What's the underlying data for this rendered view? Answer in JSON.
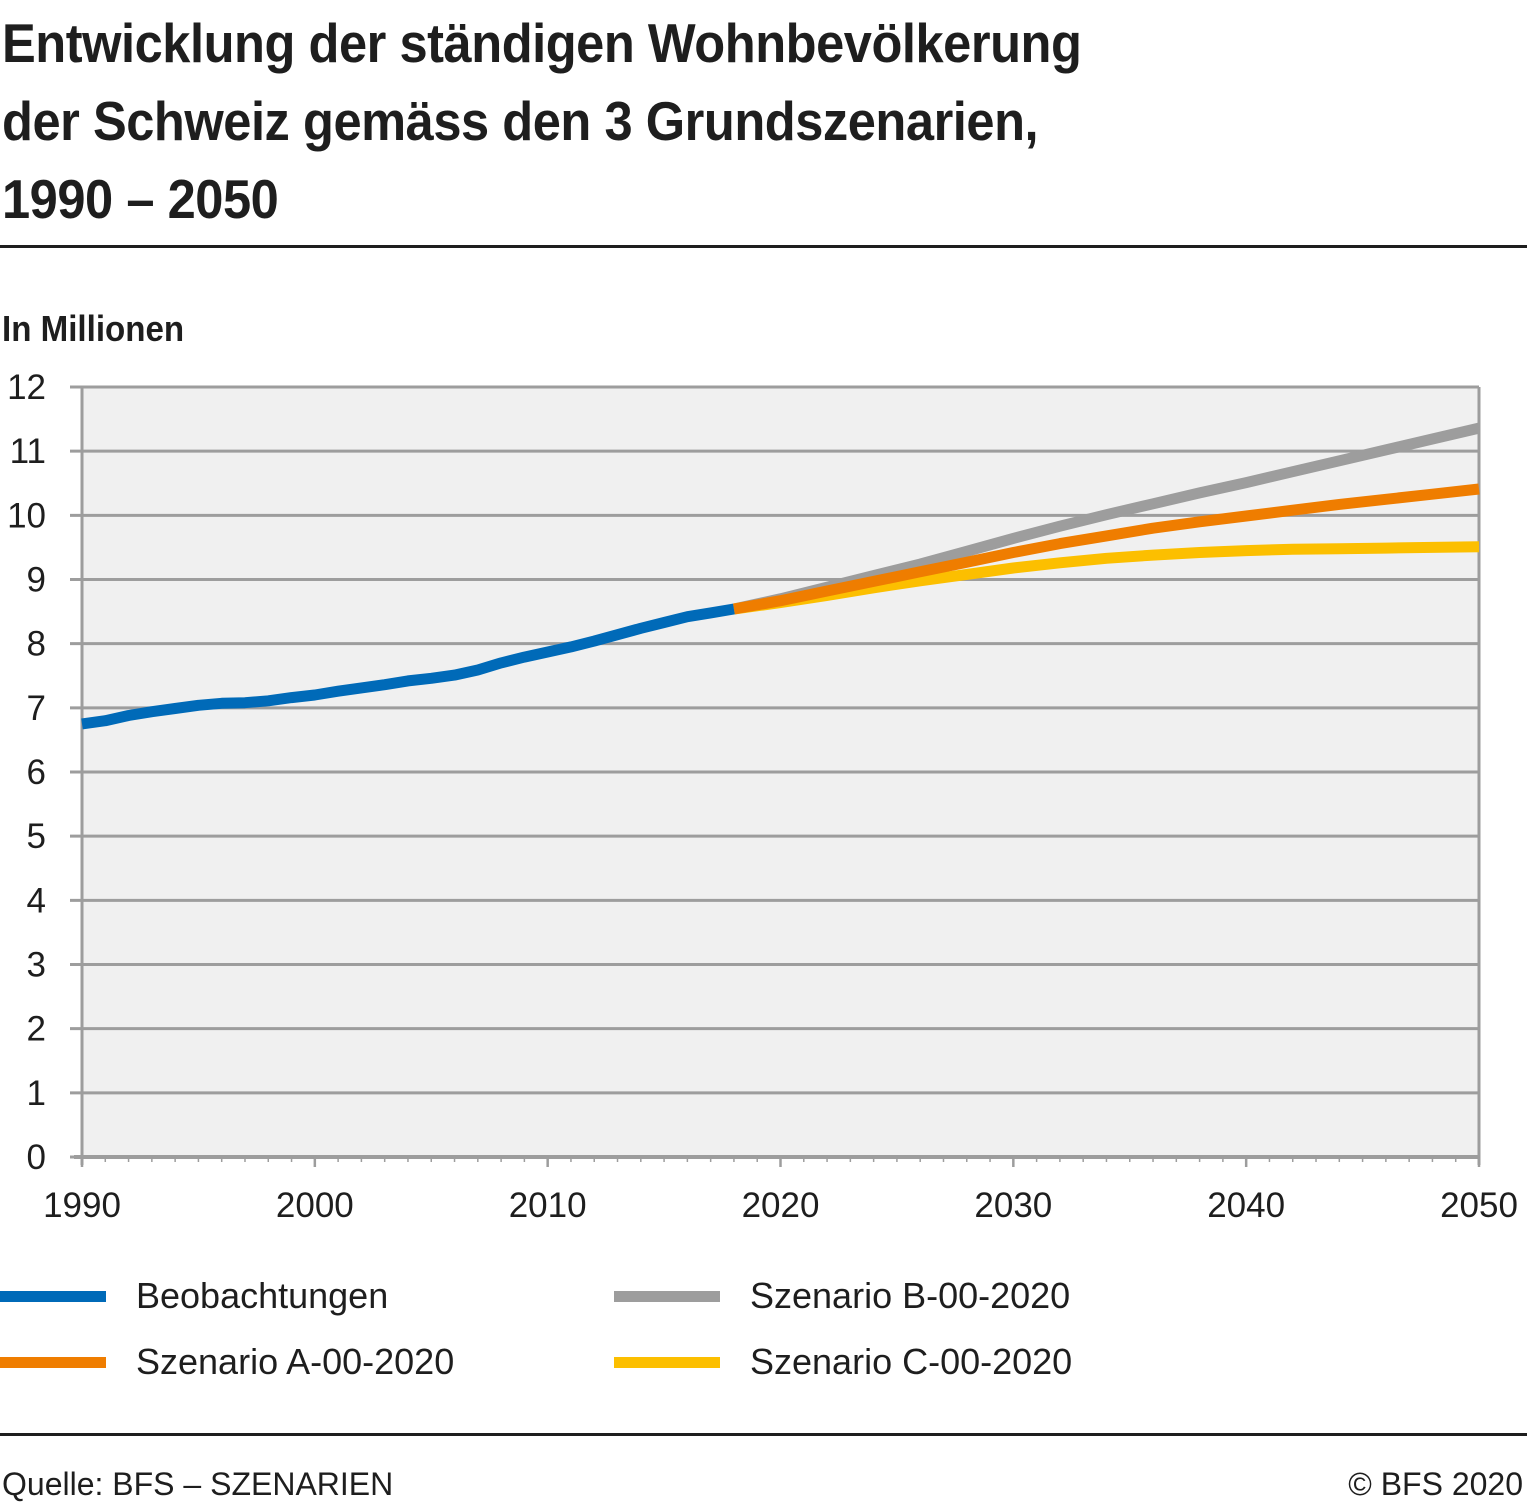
{
  "header": {
    "title_lines": [
      "Entwicklung der ständigen Wohnbevölkerung",
      "der Schweiz gemäss den 3 Grundszenarien,",
      "1990 – 2050"
    ],
    "unit_label": "In Millionen"
  },
  "footer": {
    "source": "Quelle: BFS – SZENARIEN",
    "copyright": "© BFS 2020"
  },
  "chart_data": {
    "type": "line",
    "title": "Entwicklung der ständigen Wohnbevölkerung der Schweiz gemäss den 3 Grundszenarien, 1990 – 2050",
    "xlabel": "",
    "ylabel": "In Millionen",
    "xlim": [
      1990,
      2050
    ],
    "ylim": [
      0,
      12
    ],
    "x_ticks": [
      1990,
      2000,
      2010,
      2020,
      2030,
      2040,
      2050
    ],
    "y_ticks": [
      0,
      1,
      2,
      3,
      4,
      5,
      6,
      7,
      8,
      9,
      10,
      11,
      12
    ],
    "grid": true,
    "legend_position": "bottom",
    "plot_background": "#f0f0f0",
    "series": [
      {
        "name": "Beobachtungen",
        "color": "#006ab8",
        "x": [
          1990,
          1991,
          1992,
          1993,
          1994,
          1995,
          1996,
          1997,
          1998,
          1999,
          2000,
          2001,
          2002,
          2003,
          2004,
          2005,
          2006,
          2007,
          2008,
          2009,
          2010,
          2011,
          2012,
          2013,
          2014,
          2015,
          2016,
          2017,
          2018
        ],
        "values": [
          6.75,
          6.8,
          6.88,
          6.94,
          6.99,
          7.04,
          7.07,
          7.08,
          7.11,
          7.16,
          7.2,
          7.26,
          7.31,
          7.36,
          7.42,
          7.46,
          7.51,
          7.59,
          7.7,
          7.79,
          7.87,
          7.95,
          8.04,
          8.14,
          8.24,
          8.33,
          8.42,
          8.48,
          8.54
        ]
      },
      {
        "name": "Szenario A-00-2020",
        "color": "#ef7d00",
        "x": [
          2018,
          2020,
          2022,
          2024,
          2026,
          2028,
          2030,
          2032,
          2034,
          2036,
          2038,
          2040,
          2042,
          2044,
          2046,
          2048,
          2050
        ],
        "values": [
          8.54,
          8.67,
          8.82,
          8.97,
          9.12,
          9.27,
          9.42,
          9.56,
          9.68,
          9.8,
          9.9,
          9.99,
          10.08,
          10.17,
          10.25,
          10.33,
          10.41
        ]
      },
      {
        "name": "Szenario B-00-2020",
        "color": "#9d9d9d",
        "x": [
          2018,
          2020,
          2022,
          2024,
          2026,
          2028,
          2030,
          2032,
          2034,
          2036,
          2038,
          2040,
          2042,
          2044,
          2046,
          2048,
          2050
        ],
        "values": [
          8.54,
          8.7,
          8.88,
          9.06,
          9.24,
          9.44,
          9.64,
          9.83,
          10.01,
          10.18,
          10.35,
          10.51,
          10.68,
          10.85,
          11.02,
          11.19,
          11.36
        ]
      },
      {
        "name": "Szenario C-00-2020",
        "color": "#fcbf00",
        "x": [
          2018,
          2020,
          2022,
          2024,
          2026,
          2028,
          2030,
          2032,
          2034,
          2036,
          2038,
          2040,
          2042,
          2044,
          2046,
          2048,
          2050
        ],
        "values": [
          8.54,
          8.64,
          8.75,
          8.87,
          8.98,
          9.08,
          9.18,
          9.26,
          9.33,
          9.38,
          9.42,
          9.45,
          9.47,
          9.48,
          9.49,
          9.5,
          9.51
        ]
      }
    ]
  },
  "legend": [
    {
      "label": "Beobachtungen",
      "color": "#006ab8"
    },
    {
      "label": "Szenario B-00-2020",
      "color": "#9d9d9d"
    },
    {
      "label": "Szenario A-00-2020",
      "color": "#ef7d00"
    },
    {
      "label": "Szenario C-00-2020",
      "color": "#fcbf00"
    }
  ]
}
